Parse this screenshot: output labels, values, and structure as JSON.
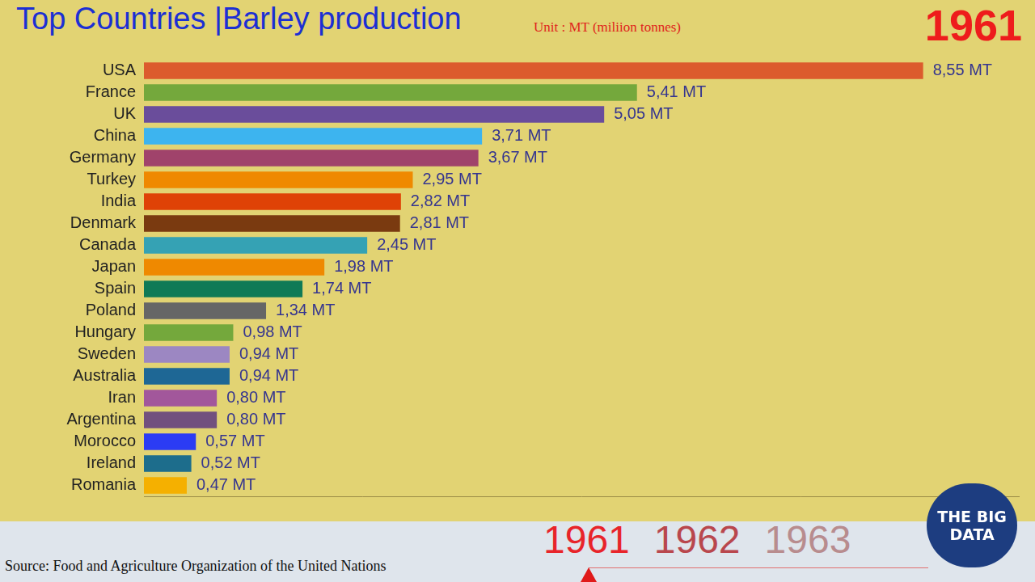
{
  "chart_data": {
    "type": "bar",
    "orientation": "horizontal",
    "title": "Top Countries |Barley production",
    "subtitle": "Unit : MT (miliion tonnes)",
    "categories": [
      "USA",
      "France",
      "UK",
      "China",
      "Germany",
      "Turkey",
      "India",
      "Denmark",
      "Canada",
      "Japan",
      "Spain",
      "Poland",
      "Hungary",
      "Sweden",
      "Australia",
      "Iran",
      "Argentina",
      "Morocco",
      "Ireland",
      "Romania"
    ],
    "values": [
      8.55,
      5.41,
      5.05,
      3.71,
      3.67,
      2.95,
      2.82,
      2.81,
      2.45,
      1.98,
      1.74,
      1.34,
      0.98,
      0.94,
      0.94,
      0.8,
      0.8,
      0.57,
      0.52,
      0.47
    ],
    "value_labels": [
      "8,55 MT",
      "5,41 MT",
      "5,05 MT",
      "3,71 MT",
      "3,67 MT",
      "2,95 MT",
      "2,82 MT",
      "2,81 MT",
      "2,45 MT",
      "1,98 MT",
      "1,74 MT",
      "1,34 MT",
      "0,98 MT",
      "0,94 MT",
      "0,94 MT",
      "0,80 MT",
      "0,80 MT",
      "0,57 MT",
      "0,52 MT",
      "0,47 MT"
    ],
    "colors": [
      "#dc5b2d",
      "#74a83c",
      "#6a4d9b",
      "#3db4ef",
      "#a0436b",
      "#ef8900",
      "#df4206",
      "#7a3a10",
      "#35a2b4",
      "#ef8900",
      "#107a56",
      "#666666",
      "#74a83c",
      "#9c87c2",
      "#1e6795",
      "#a2579b",
      "#72507e",
      "#2b3cf4",
      "#1d6d8c",
      "#f5b000"
    ],
    "xlim": [
      0,
      9.6
    ],
    "grid": false,
    "tick_labels": "y",
    "data_labels": true
  },
  "year": "1961",
  "timeline": [
    "1961",
    "1962",
    "1963"
  ],
  "source": "Source: Food and Agriculture Organization of the United Nations",
  "logo": [
    "THE BIG",
    "DATA"
  ]
}
